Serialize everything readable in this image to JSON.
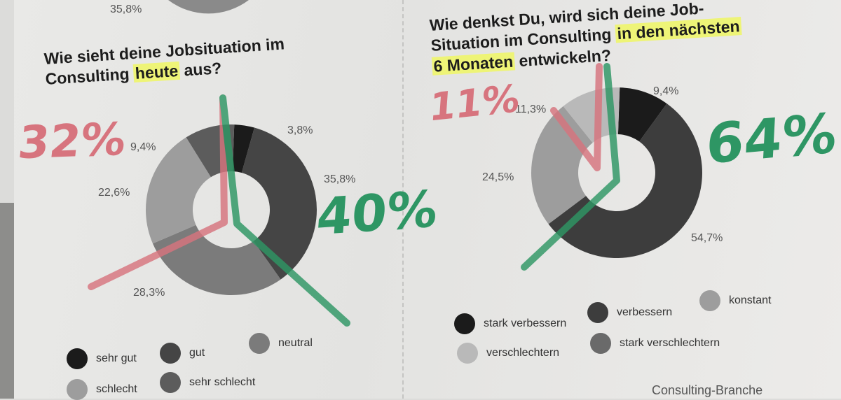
{
  "top_fragment": {
    "label": "35,8%"
  },
  "chart_data": [
    {
      "type": "pie",
      "title": "Wie sieht deine Jobsituation im Consulting heute aus?",
      "categories": [
        "sehr gut",
        "gut",
        "neutral",
        "schlecht",
        "sehr schlecht"
      ],
      "values": [
        3.8,
        35.8,
        28.3,
        22.6,
        9.4
      ],
      "labels": [
        "3,8%",
        "35,8%",
        "28,3%",
        "22,6%",
        "9,4%"
      ],
      "colors": [
        "#1b1b1b",
        "#454545",
        "#7b7b7b",
        "#9d9d9d",
        "#5c5c5c"
      ],
      "annotations": [
        {
          "text": "32%",
          "color": "#d7747e"
        },
        {
          "text": "40%",
          "color": "#2e9664"
        }
      ]
    },
    {
      "type": "pie",
      "title": "Wie denkst Du, wird sich deine Job-Situation im Consulting in den nächsten 6 Monaten entwickeln?",
      "categories": [
        "stark verbessern",
        "verbessern",
        "konstant",
        "verschlechtern",
        "stark verschlechtern"
      ],
      "values": [
        9.4,
        54.7,
        24.5,
        11.3
      ],
      "value_categories": [
        "stark verbessern",
        "verbessern",
        "konstant",
        "verschlechtern"
      ],
      "labels": [
        "9,4%",
        "54,7%",
        "24,5%",
        "11,3%"
      ],
      "colors": [
        "#1b1b1b",
        "#3d3d3d",
        "#9d9d9d",
        "#b9b9b9",
        "#6a6a6a"
      ],
      "annotations": [
        {
          "text": "11%",
          "color": "#d7747e"
        },
        {
          "text": "64%",
          "color": "#2e9664"
        }
      ]
    }
  ],
  "chart1": {
    "title_parts": [
      "Wie sieht deine Jobsituation im",
      "Consulting ",
      "heute",
      " aus?"
    ],
    "labels": [
      "3,8%",
      "35,8%",
      "28,3%",
      "22,6%",
      "9,4%"
    ],
    "legend": [
      "sehr gut",
      "gut",
      "neutral",
      "schlecht",
      "sehr schlecht"
    ],
    "marker_red": "32%",
    "marker_green": "40%"
  },
  "chart2": {
    "title_parts": [
      "Wie denkst Du, wird sich deine Job-",
      "Situation im Consulting ",
      "in den nächsten",
      "6 Monaten",
      " entwickeln?"
    ],
    "labels": [
      "9,4%",
      "54,7%",
      "24,5%",
      "11,3%"
    ],
    "legend": [
      "stark verbessern",
      "verbessern",
      "konstant",
      "verschlechtern",
      "stark verschlechtern"
    ],
    "marker_red": "11%",
    "marker_green": "64%"
  },
  "footer": {
    "text": "Consulting-Branche"
  }
}
